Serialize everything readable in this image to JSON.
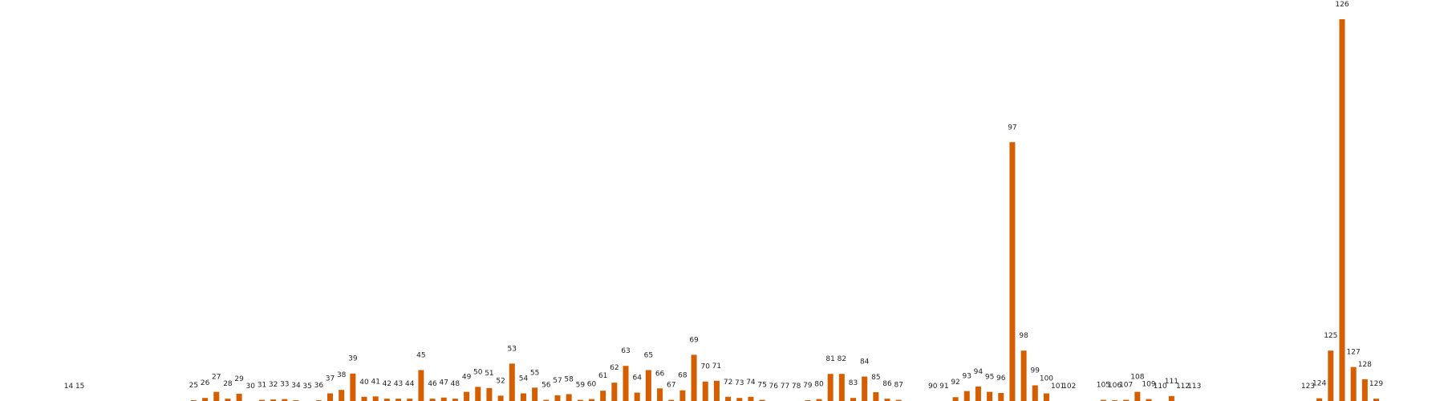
{
  "chart_data": {
    "type": "bar",
    "bar_color": "#d55e00",
    "grid": false,
    "axes_visible": false,
    "ylim": [
      0,
      100
    ],
    "categories": [
      "14",
      "15",
      "25",
      "26",
      "27",
      "28",
      "29",
      "30",
      "31",
      "32",
      "33",
      "34",
      "35",
      "36",
      "37",
      "38",
      "39",
      "40",
      "41",
      "42",
      "43",
      "44",
      "45",
      "46",
      "47",
      "48",
      "49",
      "50",
      "51",
      "52",
      "53",
      "54",
      "55",
      "56",
      "57",
      "58",
      "59",
      "60",
      "61",
      "62",
      "63",
      "64",
      "65",
      "66",
      "67",
      "68",
      "69",
      "70",
      "71",
      "72",
      "73",
      "74",
      "75",
      "76",
      "77",
      "78",
      "79",
      "80",
      "81",
      "82",
      "83",
      "84",
      "85",
      "86",
      "87",
      "90",
      "91",
      "92",
      "93",
      "94",
      "95",
      "96",
      "97",
      "98",
      "99",
      "100",
      "101",
      "102",
      "105",
      "106",
      "107",
      "108",
      "109",
      "110",
      "111",
      "112",
      "113",
      "123",
      "124",
      "125",
      "126",
      "127",
      "128",
      "129"
    ],
    "x": [
      14,
      15,
      25,
      26,
      27,
      28,
      29,
      30,
      31,
      32,
      33,
      34,
      35,
      36,
      37,
      38,
      39,
      40,
      41,
      42,
      43,
      44,
      45,
      46,
      47,
      48,
      49,
      50,
      51,
      52,
      53,
      54,
      55,
      56,
      57,
      58,
      59,
      60,
      61,
      62,
      63,
      64,
      65,
      66,
      67,
      68,
      69,
      70,
      71,
      72,
      73,
      74,
      75,
      76,
      77,
      78,
      79,
      80,
      81,
      82,
      83,
      84,
      85,
      86,
      87,
      90,
      91,
      92,
      93,
      94,
      95,
      96,
      97,
      98,
      99,
      100,
      101,
      102,
      105,
      106,
      107,
      108,
      109,
      110,
      111,
      112,
      113,
      123,
      124,
      125,
      126,
      127,
      128,
      129
    ],
    "values": [
      0,
      0,
      0.2,
      0.8,
      2.4,
      0.6,
      1.9,
      0,
      0.3,
      0.4,
      0.5,
      0.2,
      0,
      0.2,
      2.0,
      2.9,
      7.2,
      1.1,
      1.2,
      0.6,
      0.6,
      0.6,
      8.1,
      0.6,
      0.9,
      0.6,
      2.4,
      3.7,
      3.4,
      1.4,
      9.8,
      2.0,
      3.5,
      0.3,
      1.5,
      1.8,
      0.3,
      0.5,
      2.7,
      4.8,
      9.2,
      2.2,
      8.1,
      3.3,
      0.3,
      2.8,
      12.1,
      5.1,
      5.3,
      1.1,
      0.8,
      1.1,
      0.3,
      0,
      0,
      0,
      0.2,
      0.5,
      7.1,
      7.1,
      0.8,
      6.4,
      2.3,
      0.6,
      0.3,
      0,
      0,
      1.0,
      2.6,
      3.8,
      2.4,
      2.1,
      67.8,
      13.2,
      4.1,
      2.0,
      0,
      0,
      0.3,
      0.2,
      0.3,
      2.4,
      0.5,
      0,
      1.3,
      0,
      0,
      0,
      0.7,
      13.2,
      100,
      8.9,
      5.7,
      0.6
    ]
  }
}
